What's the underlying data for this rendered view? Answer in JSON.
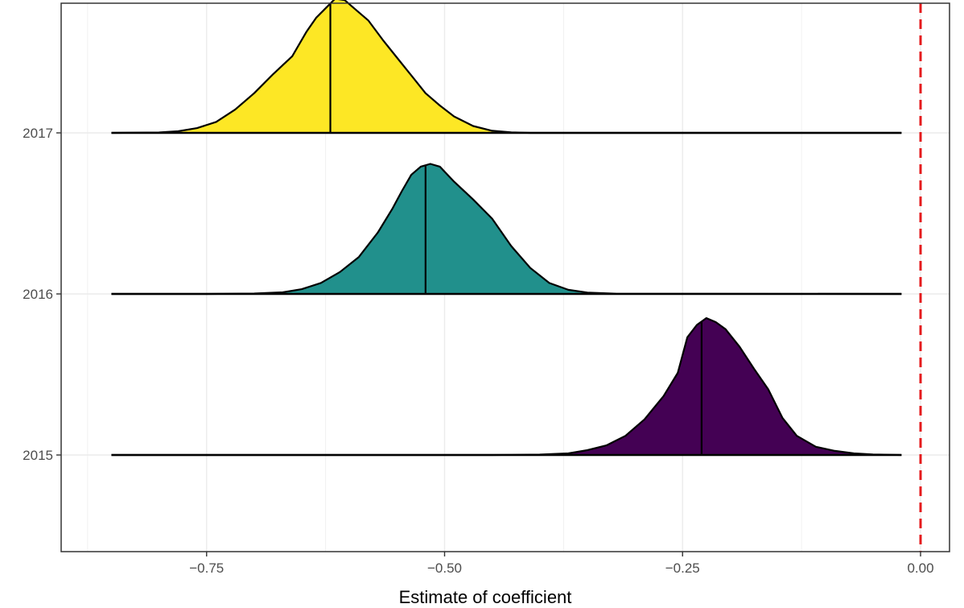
{
  "chart_data": {
    "type": "ridgeline",
    "xlabel": "Estimate of coefficient",
    "ylabel": "",
    "xlim": [
      -0.88,
      0.012
    ],
    "x_ticks": [
      -0.75,
      -0.5,
      -0.25,
      0.0
    ],
    "x_tick_labels": [
      "−0.75",
      "−0.50",
      "−0.25",
      "0.00"
    ],
    "categories": [
      "2015",
      "2016",
      "2017"
    ],
    "density_range": [
      -0.85,
      -0.02
    ],
    "series": [
      {
        "category": "2015",
        "color": "#440154",
        "mean": -0.23,
        "profile": [
          [
            -0.85,
            0
          ],
          [
            -0.45,
            0
          ],
          [
            -0.4,
            0.003
          ],
          [
            -0.37,
            0.012
          ],
          [
            -0.35,
            0.035
          ],
          [
            -0.33,
            0.07
          ],
          [
            -0.31,
            0.14
          ],
          [
            -0.29,
            0.26
          ],
          [
            -0.27,
            0.43
          ],
          [
            -0.255,
            0.6
          ],
          [
            -0.245,
            0.86
          ],
          [
            -0.235,
            0.95
          ],
          [
            -0.225,
            1.0
          ],
          [
            -0.215,
            0.97
          ],
          [
            -0.205,
            0.92
          ],
          [
            -0.19,
            0.79
          ],
          [
            -0.175,
            0.63
          ],
          [
            -0.16,
            0.48
          ],
          [
            -0.145,
            0.27
          ],
          [
            -0.13,
            0.14
          ],
          [
            -0.11,
            0.06
          ],
          [
            -0.09,
            0.03
          ],
          [
            -0.07,
            0.012
          ],
          [
            -0.05,
            0.004
          ],
          [
            -0.02,
            0
          ]
        ]
      },
      {
        "category": "2016",
        "color": "#21908C",
        "mean": -0.52,
        "profile": [
          [
            -0.85,
            0
          ],
          [
            -0.75,
            0
          ],
          [
            -0.7,
            0.003
          ],
          [
            -0.67,
            0.012
          ],
          [
            -0.65,
            0.035
          ],
          [
            -0.63,
            0.08
          ],
          [
            -0.61,
            0.16
          ],
          [
            -0.59,
            0.27
          ],
          [
            -0.57,
            0.45
          ],
          [
            -0.555,
            0.62
          ],
          [
            -0.545,
            0.75
          ],
          [
            -0.535,
            0.87
          ],
          [
            -0.525,
            0.93
          ],
          [
            -0.515,
            0.95
          ],
          [
            -0.505,
            0.93
          ],
          [
            -0.49,
            0.82
          ],
          [
            -0.47,
            0.69
          ],
          [
            -0.45,
            0.55
          ],
          [
            -0.43,
            0.35
          ],
          [
            -0.41,
            0.19
          ],
          [
            -0.39,
            0.08
          ],
          [
            -0.37,
            0.03
          ],
          [
            -0.35,
            0.01
          ],
          [
            -0.32,
            0.002
          ],
          [
            -0.02,
            0
          ]
        ]
      },
      {
        "category": "2017",
        "color": "#FDE725",
        "mean": -0.62,
        "profile": [
          [
            -0.85,
            0
          ],
          [
            -0.8,
            0.003
          ],
          [
            -0.78,
            0.012
          ],
          [
            -0.76,
            0.035
          ],
          [
            -0.74,
            0.08
          ],
          [
            -0.72,
            0.17
          ],
          [
            -0.7,
            0.29
          ],
          [
            -0.68,
            0.43
          ],
          [
            -0.66,
            0.56
          ],
          [
            -0.645,
            0.74
          ],
          [
            -0.635,
            0.84
          ],
          [
            -0.625,
            0.91
          ],
          [
            -0.615,
            0.98
          ],
          [
            -0.605,
            0.97
          ],
          [
            -0.595,
            0.91
          ],
          [
            -0.58,
            0.82
          ],
          [
            -0.565,
            0.68
          ],
          [
            -0.55,
            0.55
          ],
          [
            -0.535,
            0.42
          ],
          [
            -0.52,
            0.29
          ],
          [
            -0.505,
            0.2
          ],
          [
            -0.49,
            0.12
          ],
          [
            -0.47,
            0.05
          ],
          [
            -0.45,
            0.015
          ],
          [
            -0.43,
            0.004
          ],
          [
            -0.41,
            0
          ],
          [
            -0.02,
            0
          ]
        ]
      }
    ],
    "reference_line": {
      "x": 0.0,
      "color": "#E41A1C",
      "style": "dashed"
    },
    "grid": true,
    "legend": "none"
  }
}
